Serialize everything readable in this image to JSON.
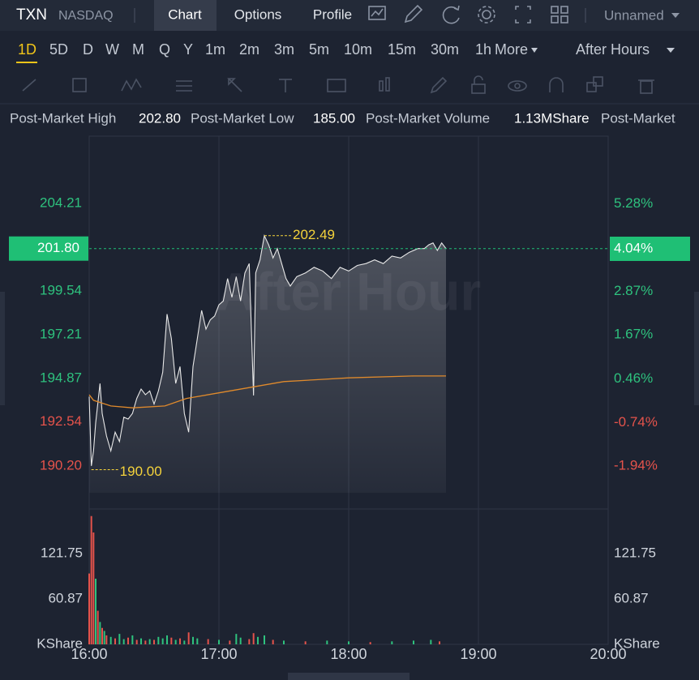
{
  "header": {
    "symbol": "TXN",
    "exchange": "NASDAQ",
    "tabs": [
      "Chart",
      "Options",
      "Profile"
    ],
    "layout": "Unnamed"
  },
  "timeframes": {
    "items": [
      "1D",
      "5D",
      "D",
      "W",
      "M",
      "Q",
      "Y",
      "1m",
      "2m",
      "3m",
      "5m",
      "10m",
      "15m",
      "30m",
      "1h",
      "More"
    ],
    "active": 0,
    "session": "After Hours"
  },
  "info": {
    "high_label": "Post-Market High",
    "high": "202.80",
    "low_label": "Post-Market Low",
    "low": "185.00",
    "volume_label": "Post-Market Volume",
    "volume": "1.13MShare",
    "extra": "Post-Market"
  },
  "chart_data": [
    {
      "type": "line",
      "watermark": "After Hour",
      "xlim": [
        "16:00",
        "20:00"
      ],
      "xticks": [
        "16:00",
        "17:00",
        "18:00",
        "19:00",
        "20:00"
      ],
      "ylim": [
        187.9,
        207.8
      ],
      "yticks": [
        {
          "value": 204.21,
          "label": "204.21"
        },
        {
          "value": 199.54,
          "label": "199.54"
        },
        {
          "value": 197.21,
          "label": "197.21"
        },
        {
          "value": 194.87,
          "label": "194.87"
        },
        {
          "value": 192.54,
          "label": "192.54"
        },
        {
          "value": 190.2,
          "label": "190.20"
        }
      ],
      "y2lim": [
        -3.12,
        7.14
      ],
      "y2ticks": [
        {
          "value": 5.28,
          "label": "5.28%"
        },
        {
          "value": 2.87,
          "label": "2.87%"
        },
        {
          "value": 1.67,
          "label": "1.67%"
        },
        {
          "value": 0.46,
          "label": "0.46%"
        },
        {
          "value": -0.74,
          "label": "-0.74%"
        },
        {
          "value": -1.94,
          "label": "-1.94%"
        }
      ],
      "up_color": "#2ec27e",
      "down_color": "#e5534b",
      "last_price": {
        "value": 201.8,
        "label": "201.80"
      },
      "last_change": {
        "value": 4.04,
        "label": "4.04%"
      },
      "last_color": "#1fbf75",
      "max_note": {
        "x": "17:21",
        "value": 202.49
      },
      "min_note": {
        "x": "16:01",
        "value": 190,
        "label": "190.00"
      },
      "note_color": "#f5d33b",
      "series": [
        {
          "name": "Price",
          "color": "#e8e8e8",
          "area": true,
          "x": [
            "16:00",
            "16:01",
            "16:02",
            "16:03",
            "16:05",
            "16:06",
            "16:08",
            "16:10",
            "16:12",
            "16:14",
            "16:16",
            "16:18",
            "16:20",
            "16:22",
            "16:24",
            "16:26",
            "16:28",
            "16:30",
            "16:32",
            "16:34",
            "16:36",
            "16:38",
            "16:40",
            "16:42",
            "16:44",
            "16:46",
            "16:48",
            "16:50",
            "16:52",
            "16:54",
            "16:56",
            "16:58",
            "17:00",
            "17:02",
            "17:04",
            "17:06",
            "17:08",
            "17:10",
            "17:12",
            "17:14",
            "17:16",
            "17:17",
            "17:19",
            "17:21",
            "17:23",
            "17:25",
            "17:27",
            "17:29",
            "17:31",
            "17:33",
            "17:36",
            "17:40",
            "17:44",
            "17:48",
            "17:52",
            "17:56",
            "18:00",
            "18:04",
            "18:08",
            "18:12",
            "18:16",
            "18:20",
            "18:24",
            "18:28",
            "18:32",
            "18:35",
            "18:37",
            "18:39",
            "18:41",
            "18:43",
            "18:45"
          ],
          "values": [
            193.9,
            190.2,
            191,
            192.5,
            194.6,
            193,
            191.8,
            191,
            192,
            191.5,
            192.8,
            192.7,
            193,
            193.8,
            194.3,
            194,
            194.2,
            193.5,
            194.2,
            195.2,
            198.3,
            197,
            194.6,
            195.5,
            193,
            192,
            195.5,
            197,
            198.5,
            197.5,
            198,
            198.2,
            198.8,
            199,
            200.2,
            199.2,
            200.3,
            199,
            200.5,
            201,
            193.96,
            200.5,
            201.2,
            202.49,
            202,
            201.3,
            201.8,
            201,
            200.2,
            199.8,
            200.3,
            200.5,
            200.8,
            200.6,
            200.2,
            200.8,
            200.6,
            200.9,
            201,
            201.2,
            201,
            201.4,
            201.3,
            201.6,
            201.8,
            201.8,
            202,
            202.1,
            201.7,
            202.1,
            201.8
          ]
        },
        {
          "name": "Average",
          "color": "#e08a2c",
          "area": false,
          "x": [
            "16:00",
            "16:02",
            "16:10",
            "16:20",
            "16:35",
            "16:45",
            "17:00",
            "17:10",
            "17:20",
            "17:30",
            "17:45",
            "18:00",
            "18:30",
            "18:45"
          ],
          "values": [
            194,
            193.7,
            193.4,
            193.3,
            193.4,
            193.8,
            194.1,
            194.3,
            194.5,
            194.7,
            194.8,
            194.9,
            195,
            195
          ]
        }
      ]
    },
    {
      "type": "bar",
      "axis_label": "KShare",
      "ylim": [
        0,
        181.5
      ],
      "yticks": [
        121.75,
        60.87
      ],
      "x": [
        "16:00",
        "16:01",
        "16:02",
        "16:03",
        "16:04",
        "16:05",
        "16:06",
        "16:07",
        "16:08",
        "16:10",
        "16:12",
        "16:14",
        "16:16",
        "16:18",
        "16:20",
        "16:22",
        "16:24",
        "16:26",
        "16:28",
        "16:30",
        "16:32",
        "16:34",
        "16:36",
        "16:38",
        "16:40",
        "16:42",
        "16:44",
        "16:46",
        "16:48",
        "16:50",
        "16:55",
        "17:00",
        "17:05",
        "17:08",
        "17:10",
        "17:14",
        "17:16",
        "17:18",
        "17:21",
        "17:25",
        "17:30",
        "17:40",
        "17:50",
        "18:00",
        "18:10",
        "18:20",
        "18:30",
        "18:38",
        "18:42"
      ],
      "values": [
        95,
        172,
        150,
        88,
        45,
        30,
        22,
        18,
        12,
        10,
        8,
        14,
        7,
        9,
        12,
        6,
        8,
        5,
        7,
        6,
        10,
        8,
        12,
        9,
        6,
        8,
        5,
        16,
        10,
        8,
        7,
        6,
        5,
        14,
        9,
        7,
        15,
        10,
        12,
        6,
        5,
        4,
        5,
        4,
        3,
        4,
        5,
        6,
        4
      ],
      "colors": [
        "#e5534b",
        "#e5534b",
        "#e5534b",
        "#2ec27e",
        "#e5534b",
        "#2ec27e",
        "#e5534b",
        "#2ec27e",
        "#e5534b",
        "#2ec27e",
        "#e5534b",
        "#2ec27e",
        "#2ec27e",
        "#e5534b",
        "#2ec27e",
        "#e5534b",
        "#2ec27e",
        "#e5534b",
        "#2ec27e",
        "#e5534b",
        "#2ec27e",
        "#2ec27e",
        "#2ec27e",
        "#e5534b",
        "#2ec27e",
        "#e5534b",
        "#2ec27e",
        "#e5534b",
        "#2ec27e",
        "#2ec27e",
        "#e5534b",
        "#2ec27e",
        "#e5534b",
        "#2ec27e",
        "#2ec27e",
        "#e5534b",
        "#e5534b",
        "#2ec27e",
        "#2ec27e",
        "#e5534b",
        "#2ec27e",
        "#e5534b",
        "#2ec27e",
        "#2ec27e",
        "#e5534b",
        "#2ec27e",
        "#2ec27e",
        "#2ec27e",
        "#e5534b"
      ]
    }
  ]
}
